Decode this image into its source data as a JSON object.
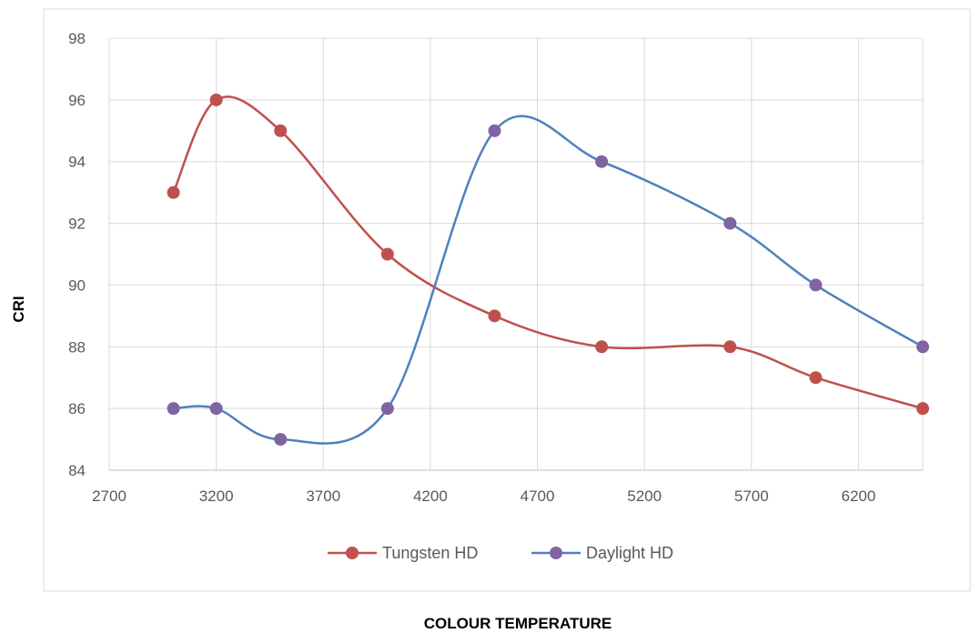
{
  "chart_data": {
    "type": "line",
    "title": "",
    "xlabel": "COLOUR TEMPERATURE",
    "ylabel": "CRI",
    "xlim": [
      2700,
      6500
    ],
    "ylim": [
      84,
      98
    ],
    "xticks": [
      2700,
      3200,
      3700,
      4200,
      4700,
      5200,
      5700,
      6200
    ],
    "yticks": [
      84,
      86,
      88,
      90,
      92,
      94,
      96,
      98
    ],
    "grid": true,
    "smooth": true,
    "legend_position": "bottom",
    "series": [
      {
        "name": "Tungsten HD",
        "color": "#C0504D",
        "x": [
          3000,
          3200,
          3500,
          4000,
          4500,
          5000,
          5600,
          6000,
          6500
        ],
        "y": [
          93,
          96,
          95,
          91,
          89,
          88,
          88,
          87,
          86
        ]
      },
      {
        "name": "Daylight HD",
        "color": "#4F81BD",
        "marker_color": "#8064A2",
        "x": [
          3000,
          3200,
          3500,
          4000,
          4500,
          5000,
          5600,
          6000,
          6500
        ],
        "y": [
          86,
          86,
          85,
          86,
          95,
          94,
          92,
          90,
          88
        ]
      }
    ]
  }
}
